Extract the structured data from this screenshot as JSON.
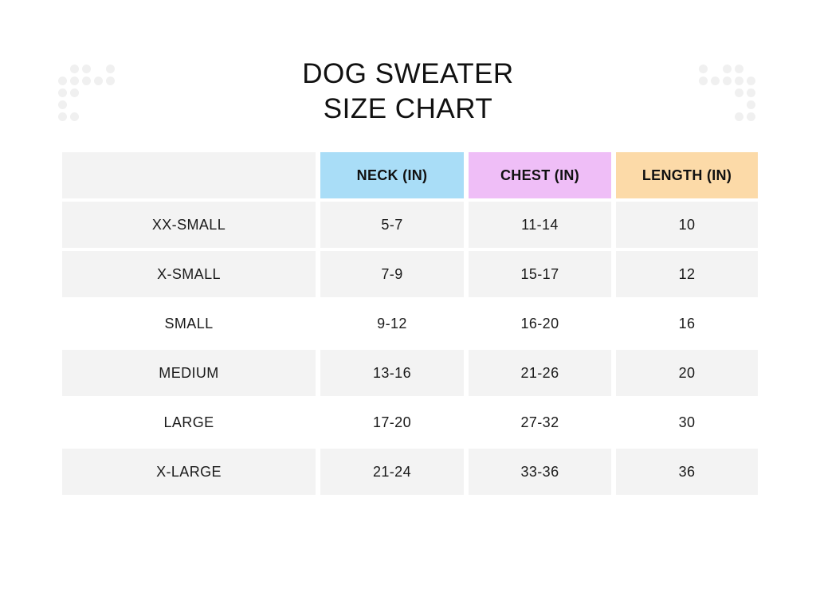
{
  "title": {
    "line1": "DOG SWEATER",
    "line2": "SIZE CHART"
  },
  "decorations": {
    "dot_color": "#f0f0f0",
    "left_dots": {
      "icon": "dot-grid-decoration",
      "pattern": [
        [
          0,
          1,
          1,
          0,
          1
        ],
        [
          1,
          1,
          1,
          1,
          1
        ],
        [
          1,
          1,
          0,
          0,
          0
        ],
        [
          1,
          0,
          0,
          0,
          0
        ],
        [
          1,
          1,
          0,
          0,
          0
        ]
      ]
    },
    "right_dots": {
      "icon": "dot-grid-decoration",
      "pattern": [
        [
          1,
          0,
          1,
          1,
          0
        ],
        [
          1,
          1,
          1,
          1,
          1
        ],
        [
          0,
          0,
          0,
          1,
          1
        ],
        [
          0,
          0,
          0,
          0,
          1
        ],
        [
          0,
          0,
          0,
          1,
          1
        ]
      ]
    }
  },
  "colors": {
    "row_shade": "#f3f3f3",
    "neck_header": "#a9ddf7",
    "chest_header": "#efbef7",
    "length_header": "#fcdaa8",
    "text": "#111111",
    "background": "#ffffff"
  },
  "table": {
    "columns": [
      {
        "key": "size",
        "label": "",
        "color": "#f3f3f3"
      },
      {
        "key": "neck",
        "label": "NECK (IN)",
        "color": "#a9ddf7"
      },
      {
        "key": "chest",
        "label": "CHEST (IN)",
        "color": "#efbef7"
      },
      {
        "key": "length",
        "label": "LENGTH (IN)",
        "color": "#fcdaa8"
      }
    ],
    "rows": [
      {
        "size": "XX-SMALL",
        "neck": "5-7",
        "chest": "11-14",
        "length": "10",
        "shaded": true
      },
      {
        "size": "X-SMALL",
        "neck": "7-9",
        "chest": "15-17",
        "length": "12",
        "shaded": true
      },
      {
        "size": "SMALL",
        "neck": "9-12",
        "chest": "16-20",
        "length": "16",
        "shaded": false
      },
      {
        "size": "MEDIUM",
        "neck": "13-16",
        "chest": "21-26",
        "length": "20",
        "shaded": true
      },
      {
        "size": "LARGE",
        "neck": "17-20",
        "chest": "27-32",
        "length": "30",
        "shaded": false
      },
      {
        "size": "X-LARGE",
        "neck": "21-24",
        "chest": "33-36",
        "length": "36",
        "shaded": true
      }
    ]
  },
  "chart_data": {
    "type": "table",
    "title": "DOG SWEATER SIZE CHART",
    "columns": [
      "",
      "NECK (IN)",
      "CHEST (IN)",
      "LENGTH (IN)"
    ],
    "rows": [
      [
        "XX-SMALL",
        "5-7",
        "11-14",
        "10"
      ],
      [
        "X-SMALL",
        "7-9",
        "15-17",
        "12"
      ],
      [
        "SMALL",
        "9-12",
        "16-20",
        "16"
      ],
      [
        "MEDIUM",
        "13-16",
        "21-26",
        "20"
      ],
      [
        "LARGE",
        "17-20",
        "27-32",
        "30"
      ],
      [
        "X-LARGE",
        "21-24",
        "33-36",
        "36"
      ]
    ]
  }
}
